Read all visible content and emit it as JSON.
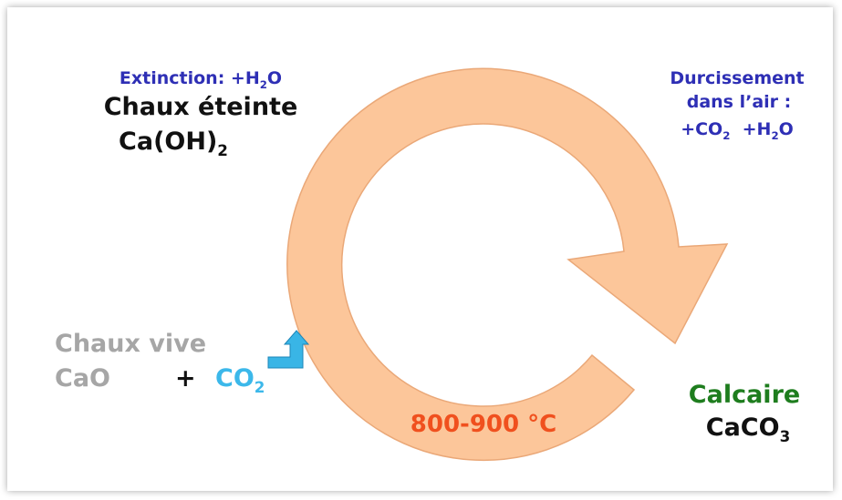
{
  "labels": {
    "extinction": [
      "Extinction: +H",
      "2",
      "O"
    ],
    "chaux_eteinte": [
      "Chaux éteinte"
    ],
    "caoh2": [
      "Ca(OH)",
      "2"
    ],
    "durcissement": [
      "Durcissement"
    ],
    "dans_air": [
      "dans l’air :"
    ],
    "co2_h2o": [
      "+CO",
      "2",
      "  +H",
      "2",
      "O"
    ],
    "chaux_vive": [
      "Chaux vive"
    ],
    "cao": [
      "CaO"
    ],
    "plus": [
      "+"
    ],
    "co2": [
      "CO",
      "2"
    ],
    "temperature": [
      "800-900 °C"
    ],
    "calcaire": [
      "Calcaire"
    ],
    "caco3": [
      "CaCO",
      "3"
    ]
  }
}
